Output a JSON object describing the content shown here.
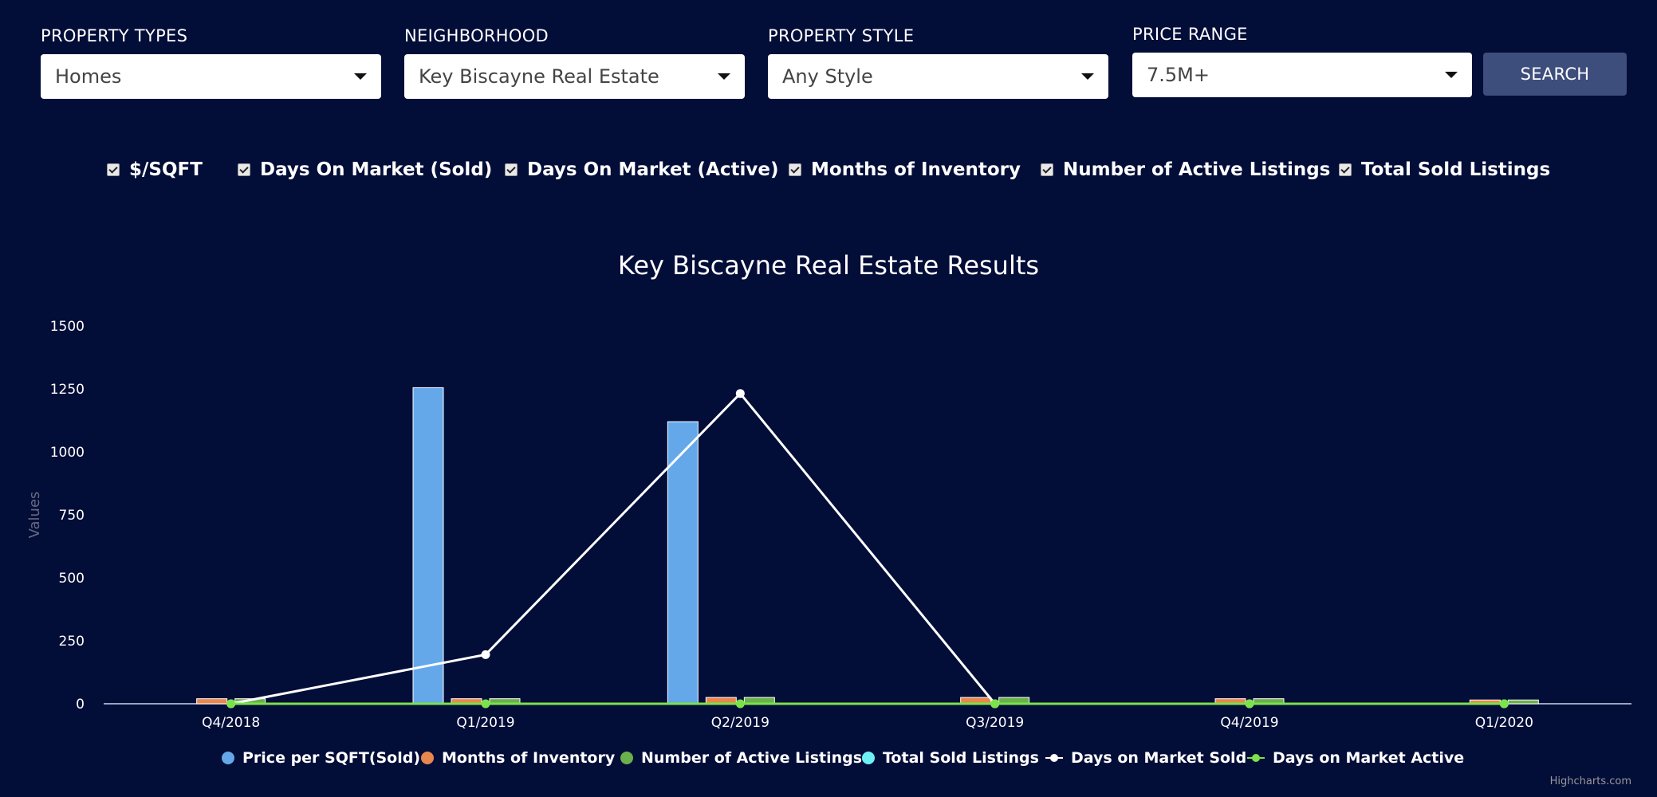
{
  "filters": {
    "property_types": {
      "label": "PROPERTY TYPES",
      "value": "Homes"
    },
    "neighborhood": {
      "label": "NEIGHBORHOOD",
      "value": "Key Biscayne Real Estate"
    },
    "property_style": {
      "label": "PROPERTY STYLE",
      "value": "Any Style"
    },
    "price_range": {
      "label": "PRICE RANGE",
      "value": "7.5M+"
    },
    "search_label": "SEARCH"
  },
  "checkboxes": [
    {
      "label": "$/SQFT",
      "checked": true
    },
    {
      "label": "Days On Market (Sold)",
      "checked": true
    },
    {
      "label": "Days On Market (Active)",
      "checked": true
    },
    {
      "label": "Months of Inventory",
      "checked": true
    },
    {
      "label": "Number of Active Listings",
      "checked": true
    },
    {
      "label": "Total Sold Listings",
      "checked": true
    }
  ],
  "credits": "Highcharts.com",
  "colors": {
    "background": "#020d38",
    "price_per_sqft": "#64a8ea",
    "months_inventory": "#e8874d",
    "active_listings": "#6ab04c",
    "total_sold": "#6ff0f5",
    "dom_sold": "#ffffff",
    "dom_active": "#7ae34a"
  },
  "chart_data": {
    "type": "bar",
    "title": "Key Biscayne Real Estate Results",
    "ylabel": "Values",
    "xlabel": "",
    "ylim": [
      0,
      1500
    ],
    "yticks": [
      0,
      250,
      500,
      750,
      1000,
      1250,
      1500
    ],
    "categories": [
      "Q4/2018",
      "Q1/2019",
      "Q2/2019",
      "Q3/2019",
      "Q4/2019",
      "Q1/2020"
    ],
    "legend_position": "bottom",
    "series": [
      {
        "name": "Price per SQFT(Sold)",
        "type": "column",
        "values": [
          0,
          1255,
          1120,
          0,
          0,
          0
        ]
      },
      {
        "name": "Months of Inventory",
        "type": "column",
        "values": [
          20,
          20,
          25,
          25,
          20,
          15
        ]
      },
      {
        "name": "Number of Active Listings",
        "type": "column",
        "values": [
          20,
          20,
          25,
          25,
          20,
          15
        ]
      },
      {
        "name": "Total Sold Listings",
        "type": "column",
        "values": [
          0,
          0,
          0,
          0,
          0,
          0
        ]
      },
      {
        "name": "Days on Market Sold",
        "type": "line",
        "values": [
          0,
          195,
          1232,
          0,
          0,
          0
        ]
      },
      {
        "name": "Days on Market Active",
        "type": "line",
        "values": [
          0,
          0,
          0,
          0,
          0,
          0
        ]
      }
    ]
  }
}
